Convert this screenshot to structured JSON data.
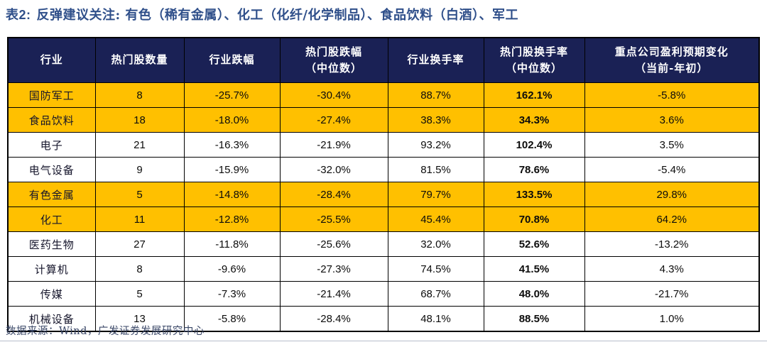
{
  "title": {
    "tag": "表2:",
    "text": "反弹建议关注: 有色（稀有金属）、化工（化纤/化学制品）、食品饮料（白酒）、军工"
  },
  "table": {
    "columns": [
      {
        "line1": "行业",
        "line2": ""
      },
      {
        "line1": "热门股数量",
        "line2": ""
      },
      {
        "line1": "行业跌幅",
        "line2": ""
      },
      {
        "line1": "热门股跌幅",
        "line2": "（中位数）"
      },
      {
        "line1": "行业换手率",
        "line2": ""
      },
      {
        "line1": "热门股换手率",
        "line2": "（中位数）"
      },
      {
        "line1": "重点公司盈利预期变化",
        "line2": "（当前-年初）"
      }
    ],
    "rows": [
      {
        "industry": "国防军工",
        "hot_stock_count": "8",
        "industry_decline": "-25.7%",
        "hot_stock_decline_median": "-30.4%",
        "industry_turnover": "88.7%",
        "hot_stock_turnover_median": "162.1%",
        "profit_forecast_change": "-5.8%",
        "highlight": true
      },
      {
        "industry": "食品饮料",
        "hot_stock_count": "18",
        "industry_decline": "-18.0%",
        "hot_stock_decline_median": "-27.4%",
        "industry_turnover": "38.3%",
        "hot_stock_turnover_median": "34.3%",
        "profit_forecast_change": "3.6%",
        "highlight": true
      },
      {
        "industry": "电子",
        "hot_stock_count": "21",
        "industry_decline": "-16.3%",
        "hot_stock_decline_median": "-21.9%",
        "industry_turnover": "93.2%",
        "hot_stock_turnover_median": "102.4%",
        "profit_forecast_change": "3.5%",
        "highlight": false
      },
      {
        "industry": "电气设备",
        "hot_stock_count": "9",
        "industry_decline": "-15.9%",
        "hot_stock_decline_median": "-32.0%",
        "industry_turnover": "81.5%",
        "hot_stock_turnover_median": "78.6%",
        "profit_forecast_change": "-5.4%",
        "highlight": false
      },
      {
        "industry": "有色金属",
        "hot_stock_count": "5",
        "industry_decline": "-14.8%",
        "hot_stock_decline_median": "-28.4%",
        "industry_turnover": "79.7%",
        "hot_stock_turnover_median": "133.5%",
        "profit_forecast_change": "29.8%",
        "highlight": true
      },
      {
        "industry": "化工",
        "hot_stock_count": "11",
        "industry_decline": "-12.8%",
        "hot_stock_decline_median": "-25.5%",
        "industry_turnover": "45.4%",
        "hot_stock_turnover_median": "70.8%",
        "profit_forecast_change": "64.2%",
        "highlight": true
      },
      {
        "industry": "医药生物",
        "hot_stock_count": "27",
        "industry_decline": "-11.8%",
        "hot_stock_decline_median": "-25.6%",
        "industry_turnover": "32.0%",
        "hot_stock_turnover_median": "52.6%",
        "profit_forecast_change": "-13.2%",
        "highlight": false
      },
      {
        "industry": "计算机",
        "hot_stock_count": "8",
        "industry_decline": "-9.6%",
        "hot_stock_decline_median": "-27.3%",
        "industry_turnover": "74.5%",
        "hot_stock_turnover_median": "41.5%",
        "profit_forecast_change": "4.3%",
        "highlight": false
      },
      {
        "industry": "传媒",
        "hot_stock_count": "5",
        "industry_decline": "-7.3%",
        "hot_stock_decline_median": "-21.4%",
        "industry_turnover": "68.7%",
        "hot_stock_turnover_median": "48.0%",
        "profit_forecast_change": "-21.7%",
        "highlight": false
      },
      {
        "industry": "机械设备",
        "hot_stock_count": "13",
        "industry_decline": "-5.8%",
        "hot_stock_decline_median": "-28.4%",
        "industry_turnover": "48.1%",
        "hot_stock_turnover_median": "88.5%",
        "profit_forecast_change": "1.0%",
        "highlight": false
      }
    ]
  },
  "footer": {
    "source_text": "数据来源：Wind，广发证券发展研究中心"
  },
  "colors": {
    "header_bg": "#1A2155",
    "header_text": "#FFFFFF",
    "highlight_row": "#FFC000",
    "title_text": "#2F4F8A",
    "border": "#000000",
    "footer_text": "#3A4767",
    "page_divider": "#B8BFCC"
  },
  "chart_data": {
    "type": "table",
    "title": "表2: 反弹建议关注: 有色（稀有金属）、化工（化纤/化学制品）、食品饮料（白酒）、军工",
    "columns": [
      "行业",
      "热门股数量",
      "行业跌幅",
      "热门股跌幅（中位数）",
      "行业换手率",
      "热门股换手率（中位数）",
      "重点公司盈利预期变化（当前-年初）"
    ],
    "rows": [
      [
        "国防军工",
        "8",
        "-25.7%",
        "-30.4%",
        "88.7%",
        "162.1%",
        "-5.8%"
      ],
      [
        "食品饮料",
        "18",
        "-18.0%",
        "-27.4%",
        "38.3%",
        "34.3%",
        "3.6%"
      ],
      [
        "电子",
        "21",
        "-16.3%",
        "-21.9%",
        "93.2%",
        "102.4%",
        "3.5%"
      ],
      [
        "电气设备",
        "9",
        "-15.9%",
        "-32.0%",
        "81.5%",
        "78.6%",
        "-5.4%"
      ],
      [
        "有色金属",
        "5",
        "-14.8%",
        "-28.4%",
        "79.7%",
        "133.5%",
        "29.8%"
      ],
      [
        "化工",
        "11",
        "-12.8%",
        "-25.5%",
        "45.4%",
        "70.8%",
        "64.2%"
      ],
      [
        "医药生物",
        "27",
        "-11.8%",
        "-25.6%",
        "32.0%",
        "52.6%",
        "-13.2%"
      ],
      [
        "计算机",
        "8",
        "-9.6%",
        "-27.3%",
        "74.5%",
        "41.5%",
        "4.3%"
      ],
      [
        "传媒",
        "5",
        "-7.3%",
        "-21.4%",
        "68.7%",
        "48.0%",
        "-21.7%"
      ],
      [
        "机械设备",
        "13",
        "-5.8%",
        "-28.4%",
        "48.1%",
        "88.5%",
        "1.0%"
      ]
    ],
    "highlighted_rows": [
      "国防军工",
      "食品饮料",
      "有色金属",
      "化工"
    ],
    "bold_column": "热门股换手率（中位数）",
    "source": "数据来源：Wind，广发证券发展研究中心"
  }
}
